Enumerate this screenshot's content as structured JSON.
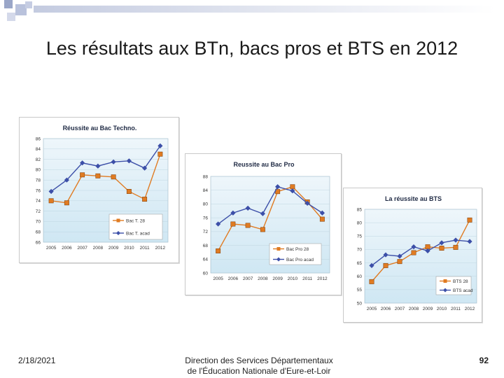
{
  "slide": {
    "title": "Les résultats aux BTn, bacs pros et BTS  en 2012",
    "date": "2/18/2021",
    "footer_line1": "Direction des Services Départementaux",
    "footer_line2": "de l'Éducation Nationale d'Eure-et-Loir",
    "page_number": "92"
  },
  "colors": {
    "orange": "#e07b22",
    "blue": "#3c4fa8",
    "plot_top": "#eef6fb",
    "plot_bottom": "#cfe7f3"
  },
  "chart_data": [
    {
      "type": "line",
      "title": "Réussite au Bac Techno.",
      "categories": [
        "2005",
        "2006",
        "2007",
        "2008",
        "2009",
        "2010",
        "2011",
        "2012"
      ],
      "ylim": [
        66,
        86
      ],
      "yticks": [
        "86",
        "84",
        "82",
        "80",
        "78",
        "76",
        "74",
        "72",
        "70",
        "68",
        "66"
      ],
      "series": [
        {
          "name": "Bac T. 28",
          "color": "#e07b22",
          "marker": "square",
          "values": [
            74.0,
            73.6,
            79.0,
            78.8,
            78.6,
            75.8,
            74.3,
            83.0
          ]
        },
        {
          "name": "Bac T. acad",
          "color": "#3c4fa8",
          "marker": "diamond",
          "values": [
            75.8,
            78.0,
            81.3,
            80.7,
            81.5,
            81.7,
            80.3,
            84.6
          ]
        }
      ]
    },
    {
      "type": "line",
      "title": "Reussite au Bac Pro",
      "categories": [
        "2005",
        "2006",
        "2007",
        "2008",
        "2009",
        "2010",
        "2011",
        "2012"
      ],
      "ylim": [
        60,
        88
      ],
      "yticks": [
        "88",
        "84",
        "80",
        "76",
        "72",
        "68",
        "64",
        "60"
      ],
      "series": [
        {
          "name": "Bac Pro 28",
          "color": "#e07b22",
          "marker": "square",
          "values": [
            66.4,
            74.2,
            73.8,
            72.6,
            83.6,
            85.0,
            80.6,
            75.6
          ]
        },
        {
          "name": "Bac Pro acad",
          "color": "#3c4fa8",
          "marker": "diamond",
          "values": [
            74.2,
            77.4,
            78.8,
            77.2,
            85.0,
            83.8,
            80.2,
            77.4
          ]
        }
      ]
    },
    {
      "type": "line",
      "title": "La réussite au BTS",
      "categories": [
        "2005",
        "2006",
        "2007",
        "2008",
        "2009",
        "2010",
        "2011",
        "2012"
      ],
      "ylim": [
        50,
        85
      ],
      "yticks": [
        "85",
        "80",
        "75",
        "70",
        "65",
        "60",
        "55",
        "50"
      ],
      "series": [
        {
          "name": "BTS 28",
          "color": "#e07b22",
          "marker": "square",
          "values": [
            58.0,
            64.0,
            65.5,
            68.8,
            71.0,
            70.5,
            70.8,
            81.0
          ]
        },
        {
          "name": "BTS acad",
          "color": "#3c4fa8",
          "marker": "diamond",
          "values": [
            64.0,
            68.0,
            67.5,
            71.0,
            69.5,
            72.5,
            73.5,
            73.0
          ]
        }
      ]
    }
  ]
}
